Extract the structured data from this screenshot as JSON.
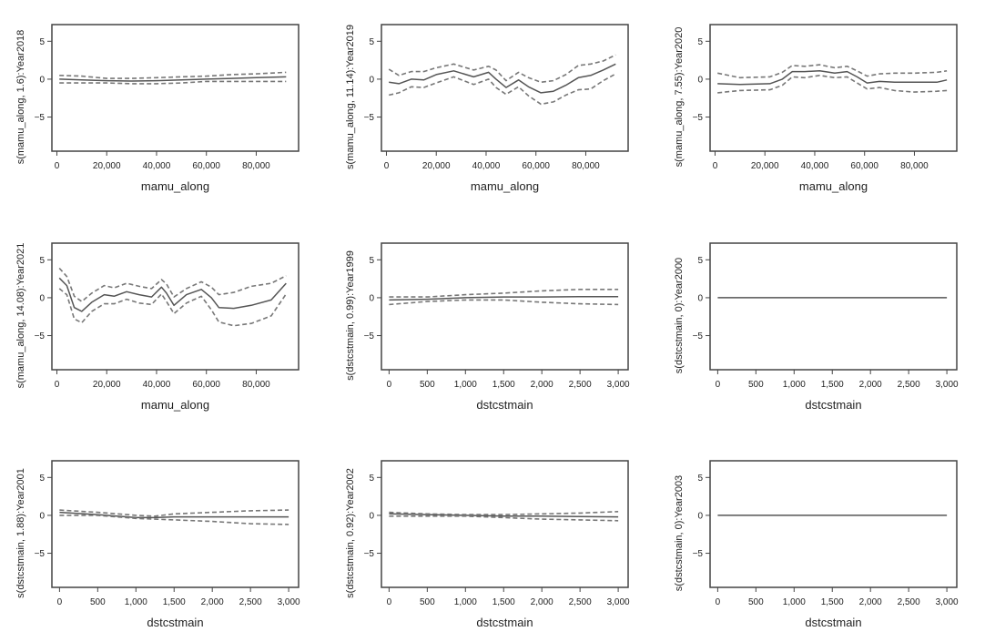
{
  "chart_data": [
    {
      "type": "line",
      "ylabel": "s(mamu_along, 1.6):Year2018",
      "xlabel": "mamu_along",
      "xlim": [
        -2000,
        97000
      ],
      "ylim": [
        -9.5,
        7.2
      ],
      "xticks": [
        0,
        20000,
        40000,
        60000,
        80000
      ],
      "xtick_labels": [
        "0",
        "20,000",
        "40,000",
        "60,000",
        "80,000"
      ],
      "yticks": [
        5,
        0,
        -5
      ],
      "ytick_labels": [
        "5",
        "0",
        "−5"
      ],
      "x": [
        1000,
        10000,
        20000,
        30000,
        40000,
        50000,
        60000,
        70000,
        80000,
        92000
      ],
      "series": [
        {
          "name": "fit",
          "style": "solid",
          "values": [
            0.0,
            -0.1,
            -0.2,
            -0.25,
            -0.2,
            -0.1,
            0.0,
            0.1,
            0.2,
            0.3
          ]
        },
        {
          "name": "upper",
          "style": "dashed",
          "values": [
            0.5,
            0.4,
            0.1,
            0.1,
            0.2,
            0.3,
            0.4,
            0.6,
            0.7,
            0.9
          ]
        },
        {
          "name": "lower",
          "style": "dashed",
          "values": [
            -0.5,
            -0.5,
            -0.5,
            -0.6,
            -0.6,
            -0.5,
            -0.3,
            -0.3,
            -0.3,
            -0.3
          ]
        }
      ]
    },
    {
      "type": "line",
      "ylabel": "s(mamu_along, 11.14):Year2019",
      "xlabel": "mamu_along",
      "xlim": [
        -2000,
        97000
      ],
      "ylim": [
        -9.5,
        7.2
      ],
      "xticks": [
        0,
        20000,
        40000,
        60000,
        80000
      ],
      "xtick_labels": [
        "0",
        "20,000",
        "40,000",
        "60,000",
        "80,000"
      ],
      "yticks": [
        5,
        0,
        -5
      ],
      "ytick_labels": [
        "5",
        "0",
        "−5"
      ],
      "x": [
        1000,
        5000,
        10000,
        15000,
        20000,
        27000,
        35000,
        41000,
        44000,
        48000,
        53000,
        57000,
        62000,
        67000,
        72000,
        77000,
        82000,
        87000,
        92000
      ],
      "series": [
        {
          "name": "fit",
          "style": "solid",
          "values": [
            -0.4,
            -0.6,
            0.0,
            -0.1,
            0.6,
            1.1,
            0.3,
            0.9,
            0.0,
            -1.1,
            -0.1,
            -1.0,
            -1.8,
            -1.6,
            -0.8,
            0.2,
            0.5,
            1.2,
            2.0
          ]
        },
        {
          "name": "upper",
          "style": "dashed",
          "values": [
            1.3,
            0.5,
            1.0,
            1.0,
            1.5,
            2.0,
            1.2,
            1.7,
            1.2,
            -0.2,
            0.9,
            0.2,
            -0.4,
            -0.2,
            0.6,
            1.8,
            2.0,
            2.4,
            3.2
          ]
        },
        {
          "name": "lower",
          "style": "dashed",
          "values": [
            -2.1,
            -1.8,
            -1.0,
            -1.1,
            -0.5,
            0.3,
            -0.7,
            0.0,
            -1.1,
            -2.0,
            -1.0,
            -2.2,
            -3.3,
            -3.0,
            -2.1,
            -1.4,
            -1.3,
            -0.2,
            0.7
          ]
        }
      ]
    },
    {
      "type": "line",
      "ylabel": "s(mamu_along, 7.55):Year2020",
      "xlabel": "mamu_along",
      "xlim": [
        -2000,
        97000
      ],
      "ylim": [
        -9.5,
        7.2
      ],
      "xticks": [
        0,
        20000,
        40000,
        60000,
        80000
      ],
      "xtick_labels": [
        "0",
        "20,000",
        "40,000",
        "60,000",
        "80,000"
      ],
      "yticks": [
        5,
        0,
        -5
      ],
      "ytick_labels": [
        "5",
        "0",
        "−5"
      ],
      "x": [
        1000,
        10000,
        22000,
        27000,
        31000,
        36000,
        42000,
        48000,
        53000,
        57000,
        61000,
        66000,
        72000,
        80000,
        89000,
        93000
      ],
      "series": [
        {
          "name": "fit",
          "style": "solid",
          "values": [
            -0.6,
            -0.7,
            -0.6,
            0.0,
            1.0,
            1.0,
            1.1,
            0.8,
            1.0,
            0.3,
            -0.5,
            -0.3,
            -0.4,
            -0.4,
            -0.4,
            -0.1
          ]
        },
        {
          "name": "upper",
          "style": "dashed",
          "values": [
            0.8,
            0.2,
            0.3,
            0.9,
            1.8,
            1.7,
            1.9,
            1.5,
            1.7,
            1.1,
            0.4,
            0.7,
            0.8,
            0.8,
            0.9,
            1.1
          ]
        },
        {
          "name": "lower",
          "style": "dashed",
          "values": [
            -1.8,
            -1.5,
            -1.4,
            -0.8,
            0.3,
            0.2,
            0.5,
            0.2,
            0.3,
            -0.5,
            -1.3,
            -1.1,
            -1.5,
            -1.7,
            -1.6,
            -1.5
          ]
        }
      ]
    },
    {
      "type": "line",
      "ylabel": "s(mamu_along, 14.08):Year2021",
      "xlabel": "mamu_along",
      "xlim": [
        -2000,
        97000
      ],
      "ylim": [
        -9.5,
        7.2
      ],
      "xticks": [
        0,
        20000,
        40000,
        60000,
        80000
      ],
      "xtick_labels": [
        "0",
        "20,000",
        "40,000",
        "60,000",
        "80,000"
      ],
      "yticks": [
        5,
        0,
        -5
      ],
      "ytick_labels": [
        "5",
        "0",
        "−5"
      ],
      "x": [
        1000,
        4000,
        7000,
        10000,
        14000,
        19000,
        23000,
        28000,
        33000,
        38000,
        42000,
        44000,
        47000,
        52000,
        58000,
        62000,
        65000,
        71000,
        78000,
        86000,
        92000
      ],
      "series": [
        {
          "name": "fit",
          "style": "solid",
          "values": [
            2.6,
            1.6,
            -1.3,
            -1.8,
            -0.6,
            0.4,
            0.2,
            0.8,
            0.4,
            0.1,
            1.4,
            0.6,
            -1.0,
            0.4,
            1.1,
            0.0,
            -1.3,
            -1.4,
            -1.0,
            -0.3,
            1.9
          ]
        },
        {
          "name": "upper",
          "style": "dashed",
          "values": [
            3.9,
            2.8,
            0.2,
            -0.5,
            0.6,
            1.6,
            1.3,
            1.9,
            1.5,
            1.2,
            2.4,
            1.8,
            0.1,
            1.2,
            2.1,
            1.4,
            0.4,
            0.7,
            1.5,
            1.9,
            2.9
          ]
        },
        {
          "name": "lower",
          "style": "dashed",
          "values": [
            1.2,
            0.4,
            -2.8,
            -3.3,
            -1.8,
            -0.8,
            -0.8,
            -0.2,
            -0.7,
            -0.9,
            0.5,
            -0.5,
            -2.1,
            -0.7,
            0.2,
            -1.6,
            -3.2,
            -3.7,
            -3.4,
            -2.4,
            0.5
          ]
        }
      ]
    },
    {
      "type": "line",
      "ylabel": "s(dstcstmain, 0.99):Year1999",
      "xlabel": "dstcstmain",
      "xlim": [
        -100,
        3130
      ],
      "ylim": [
        -9.5,
        7.2
      ],
      "xticks": [
        0,
        500,
        1000,
        1500,
        2000,
        2500,
        3000
      ],
      "xtick_labels": [
        "0",
        "500",
        "1,000",
        "1,500",
        "2,000",
        "2,500",
        "3,000"
      ],
      "yticks": [
        5,
        0,
        -5
      ],
      "ytick_labels": [
        "5",
        "0",
        "−5"
      ],
      "x": [
        0,
        500,
        1000,
        1500,
        2000,
        2500,
        3000
      ],
      "series": [
        {
          "name": "fit",
          "style": "solid",
          "values": [
            -0.3,
            -0.2,
            0.0,
            0.1,
            0.1,
            0.15,
            0.15
          ]
        },
        {
          "name": "upper",
          "style": "dashed",
          "values": [
            0.1,
            0.1,
            0.4,
            0.6,
            0.9,
            1.1,
            1.1
          ]
        },
        {
          "name": "lower",
          "style": "dashed",
          "values": [
            -0.9,
            -0.5,
            -0.3,
            -0.3,
            -0.6,
            -0.8,
            -0.9
          ]
        }
      ]
    },
    {
      "type": "line",
      "ylabel": "s(dstcstmain, 0):Year2000",
      "xlabel": "dstcstmain",
      "xlim": [
        -100,
        3130
      ],
      "ylim": [
        -9.5,
        7.2
      ],
      "xticks": [
        0,
        500,
        1000,
        1500,
        2000,
        2500,
        3000
      ],
      "xtick_labels": [
        "0",
        "500",
        "1,000",
        "1,500",
        "2,000",
        "2,500",
        "3,000"
      ],
      "yticks": [
        5,
        0,
        -5
      ],
      "ytick_labels": [
        "5",
        "0",
        "−5"
      ],
      "x": [
        0,
        3000
      ],
      "series": [
        {
          "name": "fit",
          "style": "solid",
          "values": [
            0,
            0
          ]
        }
      ]
    },
    {
      "type": "line",
      "ylabel": "s(dstcstmain, 1.88):Year2001",
      "xlabel": "dstcstmain",
      "xlim": [
        -100,
        3130
      ],
      "ylim": [
        -9.5,
        7.2
      ],
      "xticks": [
        0,
        500,
        1000,
        1500,
        2000,
        2500,
        3000
      ],
      "xtick_labels": [
        "0",
        "500",
        "1,000",
        "1,500",
        "2,000",
        "2,500",
        "3,000"
      ],
      "yticks": [
        5,
        0,
        -5
      ],
      "ytick_labels": [
        "5",
        "0",
        "−5"
      ],
      "x": [
        0,
        500,
        1000,
        1250,
        1500,
        2000,
        2500,
        3000
      ],
      "series": [
        {
          "name": "fit",
          "style": "solid",
          "values": [
            0.4,
            0.1,
            -0.3,
            -0.3,
            -0.2,
            -0.2,
            -0.2,
            -0.2
          ]
        },
        {
          "name": "upper",
          "style": "dashed",
          "values": [
            0.7,
            0.4,
            0.0,
            -0.1,
            0.2,
            0.4,
            0.6,
            0.7
          ]
        },
        {
          "name": "lower",
          "style": "dashed",
          "values": [
            0.0,
            0.0,
            -0.4,
            -0.5,
            -0.6,
            -0.8,
            -1.1,
            -1.2
          ]
        }
      ]
    },
    {
      "type": "line",
      "ylabel": "s(dstcstmain, 0.92):Year2002",
      "xlabel": "dstcstmain",
      "xlim": [
        -100,
        3130
      ],
      "ylim": [
        -9.5,
        7.2
      ],
      "xticks": [
        0,
        500,
        1000,
        1500,
        2000,
        2500,
        3000
      ],
      "xtick_labels": [
        "0",
        "500",
        "1,000",
        "1,500",
        "2,000",
        "2,500",
        "3,000"
      ],
      "yticks": [
        5,
        0,
        -5
      ],
      "ytick_labels": [
        "5",
        "0",
        "−5"
      ],
      "x": [
        0,
        500,
        1000,
        1500,
        2000,
        2500,
        3000
      ],
      "series": [
        {
          "name": "fit",
          "style": "solid",
          "values": [
            0.2,
            0.1,
            0.0,
            -0.1,
            -0.1,
            -0.15,
            -0.2
          ]
        },
        {
          "name": "upper",
          "style": "dashed",
          "values": [
            0.4,
            0.2,
            0.1,
            0.1,
            0.2,
            0.3,
            0.5
          ]
        },
        {
          "name": "lower",
          "style": "dashed",
          "values": [
            -0.1,
            -0.1,
            -0.1,
            -0.3,
            -0.5,
            -0.6,
            -0.7
          ]
        }
      ]
    },
    {
      "type": "line",
      "ylabel": "s(dstcstmain, 0):Year2003",
      "xlabel": "dstcstmain",
      "xlim": [
        -100,
        3130
      ],
      "ylim": [
        -9.5,
        7.2
      ],
      "xticks": [
        0,
        500,
        1000,
        1500,
        2000,
        2500,
        3000
      ],
      "xtick_labels": [
        "0",
        "500",
        "1,000",
        "1,500",
        "2,000",
        "2,500",
        "3,000"
      ],
      "yticks": [
        5,
        0,
        -5
      ],
      "ytick_labels": [
        "5",
        "0",
        "−5"
      ],
      "x": [
        0,
        3000
      ],
      "series": [
        {
          "name": "fit",
          "style": "solid",
          "values": [
            0,
            0
          ]
        }
      ]
    }
  ],
  "colors": {
    "frame": "#444444",
    "fit_line": "#555555",
    "ci_line": "#777777",
    "text": "#222222"
  }
}
